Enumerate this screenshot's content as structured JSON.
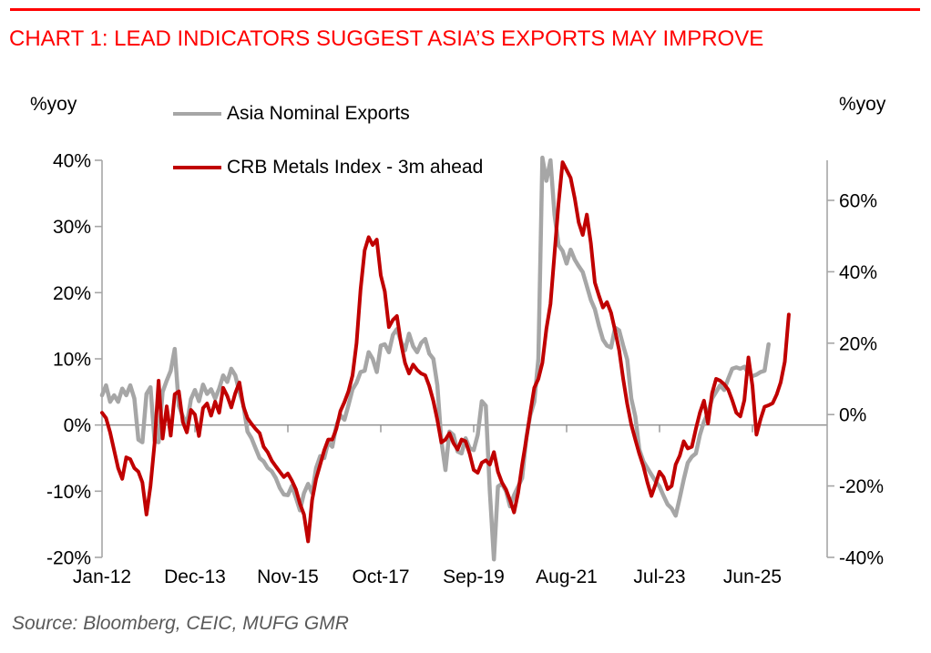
{
  "header": {
    "title": "CHART 1: LEAD INDICATORS SUGGEST ASIA’S EXPORTS MAY IMPROVE",
    "accent_color": "#FF0000"
  },
  "source_note": "Source: Bloomberg, CEIC, MUFG GMR",
  "colors": {
    "axis": "#A6A6A6",
    "zero_line": "#8C8C8C",
    "tick_text": "#000000",
    "source_text": "#595959",
    "background": "#FFFFFF"
  },
  "chart_data": {
    "type": "line",
    "left_axis": {
      "unit_label": "%yoy",
      "min": -20,
      "max": 40,
      "tick_values": [
        40,
        30,
        20,
        10,
        0,
        -10,
        -20
      ],
      "tick_labels": [
        "40%",
        "30%",
        "20%",
        "10%",
        "0%",
        "-10%",
        "-20%"
      ]
    },
    "right_axis": {
      "unit_label": "%yoy",
      "min": -40,
      "max": 71,
      "tick_values": [
        60,
        40,
        20,
        0,
        -20,
        -40
      ],
      "tick_labels": [
        "60%",
        "40%",
        "20%",
        "0%",
        "-20%",
        "-40%"
      ]
    },
    "x_axis": {
      "unit": "months since Jan-2012",
      "tick_month_indices": [
        0,
        23,
        46,
        69,
        92,
        115,
        138,
        161
      ],
      "tick_labels": [
        "Jan-12",
        "Dec-13",
        "Nov-15",
        "Oct-17",
        "Sep-19",
        "Aug-21",
        "Jul-23",
        "Jun-25"
      ]
    },
    "grid": {
      "zero_line": true
    },
    "legend_position": "top-left-inside",
    "series": [
      {
        "name": "Asia Nominal Exports",
        "axis": "left",
        "color": "#A6A6A6",
        "stroke_width": 4.5,
        "start_month_index": 0,
        "values": [
          4.5,
          6,
          3.5,
          4.5,
          3.5,
          5.5,
          4.5,
          6,
          4,
          -2.2,
          -2.6,
          4.7,
          5.7,
          -2.4,
          -2.6,
          5,
          6.7,
          8.2,
          11.5,
          2.9,
          1.3,
          0.1,
          3.9,
          5.3,
          3.6,
          6.1,
          4.7,
          5.4,
          4,
          5.5,
          7.5,
          6.5,
          8.5,
          7.5,
          5,
          3,
          -1,
          -2,
          -3.5,
          -5,
          -5.5,
          -6.5,
          -7,
          -8,
          -9.5,
          -10.5,
          -10.6,
          -9.2,
          -11,
          -12.9,
          -10.3,
          -8.9,
          -10.3,
          -6.5,
          -4.7,
          -5,
          -2.6,
          -3.3,
          -0.1,
          1.5,
          0.8,
          3,
          5.4,
          6.4,
          8,
          8.2,
          11,
          10,
          8,
          12,
          12.2,
          11,
          13.6,
          14.5,
          12.6,
          11.3,
          13.8,
          11.9,
          11,
          12.4,
          13,
          10.8,
          10,
          6,
          -2.4,
          -6.8,
          -1,
          -1.5,
          -4,
          -4.3,
          -2,
          -3.5,
          -3.8,
          -1.5,
          3.6,
          2.9,
          -10,
          -20.3,
          -9.3,
          -8.9,
          -10,
          -12.3,
          -10.6,
          -9.3,
          -8,
          -2,
          1.5,
          3.5,
          10,
          40.4,
          36.9,
          40,
          31.8,
          27.2,
          26.3,
          24.4,
          26.5,
          25,
          24,
          23.1,
          21,
          18.9,
          17.5,
          15,
          12.9,
          12,
          11.7,
          14.7,
          14.3,
          12,
          9.9,
          4,
          1.3,
          -3.7,
          -5.5,
          -6.5,
          -7.5,
          -8.5,
          -9.3,
          -10.7,
          -12,
          -12.6,
          -13.7,
          -11,
          -8.2,
          -5.7,
          -4.8,
          -4.3,
          -1.5,
          0.5,
          1.8,
          4,
          5,
          6,
          5.3,
          7,
          8.5,
          8.7,
          8.5,
          8.8,
          7.8,
          7.4,
          7.6,
          8,
          8.2,
          12.2
        ]
      },
      {
        "name": "CRB Metals Index - 3m ahead",
        "axis": "right",
        "color": "#C00000",
        "stroke_width": 4,
        "start_month_index": 0,
        "values": [
          0.5,
          -1,
          -5,
          -10,
          -15,
          -18,
          -12,
          -12.5,
          -15,
          -16,
          -19,
          -28,
          -20,
          -8,
          9.5,
          -6.7,
          2.3,
          -5.9,
          5.7,
          6.5,
          -2.1,
          -5,
          1.3,
          0,
          -6,
          1.8,
          3.1,
          -0.3,
          3.6,
          0.5,
          7.5,
          5.2,
          2,
          6,
          9,
          2.3,
          -1,
          -2.6,
          -4,
          -5.2,
          -9,
          -10.5,
          -12.9,
          -14.5,
          -16,
          -17.5,
          -16.5,
          -18.5,
          -21,
          -25,
          -28,
          -35.5,
          -24,
          -18,
          -14,
          -10,
          -7,
          -7,
          -4,
          1,
          3.5,
          6.5,
          11,
          20,
          35,
          46,
          49.7,
          47.5,
          49,
          39,
          34.5,
          24.5,
          26.5,
          27.6,
          20,
          14.5,
          11.5,
          14,
          12.5,
          11.5,
          11,
          8,
          3.8,
          -1.5,
          -7.8,
          -7,
          -5.2,
          -8,
          -9.8,
          -7,
          -7.5,
          -11,
          -15.5,
          -16.3,
          -13.5,
          -12.8,
          -14,
          -10.5,
          -16,
          -19,
          -21,
          -24,
          -27.4,
          -21.9,
          -14,
          -7,
          0.5,
          7.5,
          10,
          14.5,
          24,
          31,
          45,
          59,
          70.7,
          68.5,
          66.3,
          60.6,
          53.8,
          50.3,
          56,
          48,
          37,
          33.3,
          30,
          31.5,
          28.5,
          23.5,
          18,
          10,
          3,
          -2.8,
          -7,
          -11,
          -14.5,
          -19,
          -22.8,
          -19.5,
          -16,
          -17.5,
          -20.9,
          -20,
          -14,
          -11.5,
          -7.5,
          -9.5,
          -9,
          -4,
          0.5,
          3.9,
          -2.5,
          6,
          10,
          9.5,
          8.5,
          7,
          4,
          0.5,
          -0.5,
          4,
          16,
          8,
          -5.6,
          -1.3,
          2.2,
          2.6,
          3.2,
          5.6,
          9,
          14.8,
          28
        ]
      }
    ]
  }
}
